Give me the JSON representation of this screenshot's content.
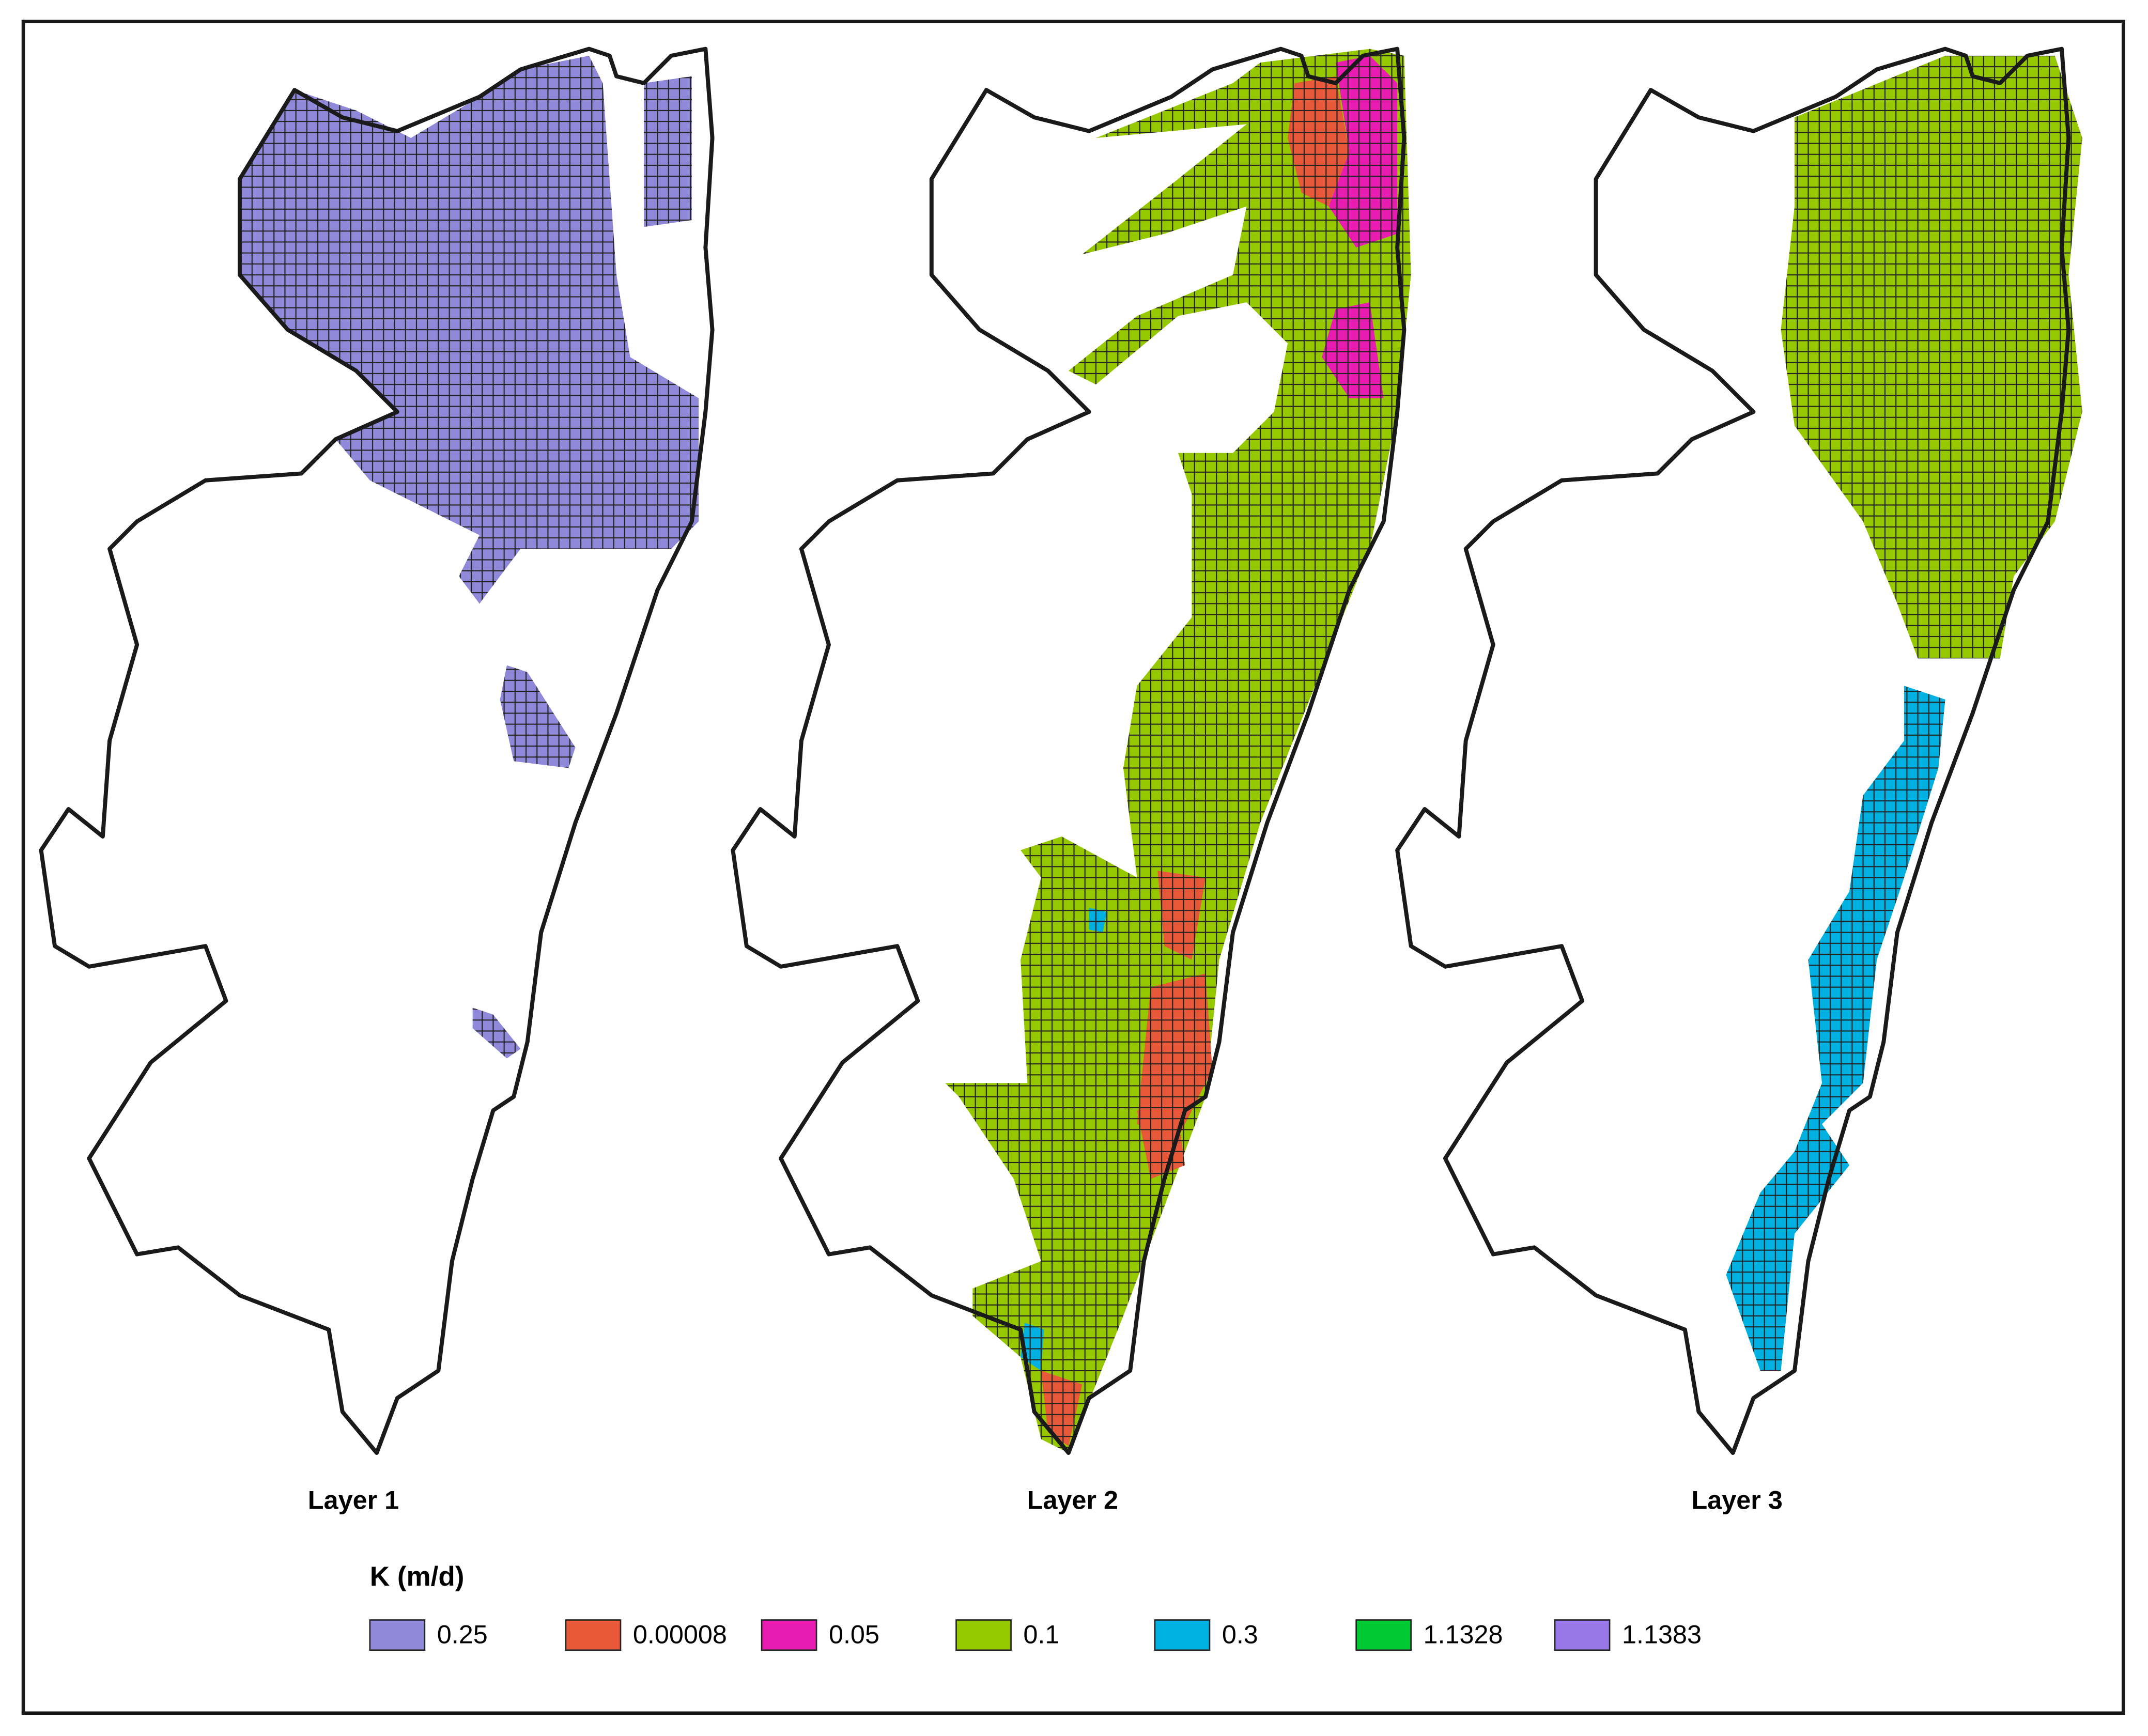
{
  "panels": [
    {
      "label": "Layer 1"
    },
    {
      "label": "Layer 2"
    },
    {
      "label": "Layer 3"
    }
  ],
  "legend": {
    "title": "K (m/d)",
    "items": [
      {
        "label": "0.25",
        "color": "#9088d8"
      },
      {
        "label": "0.00008",
        "color": "#e8593a"
      },
      {
        "label": "0.05",
        "color": "#e81cb0"
      },
      {
        "label": "0.1",
        "color": "#96c800"
      },
      {
        "label": "0.3",
        "color": "#00b0e0"
      },
      {
        "label": "1.1328",
        "color": "#00c832"
      },
      {
        "label": "1.1383",
        "color": "#9878e8"
      }
    ]
  }
}
